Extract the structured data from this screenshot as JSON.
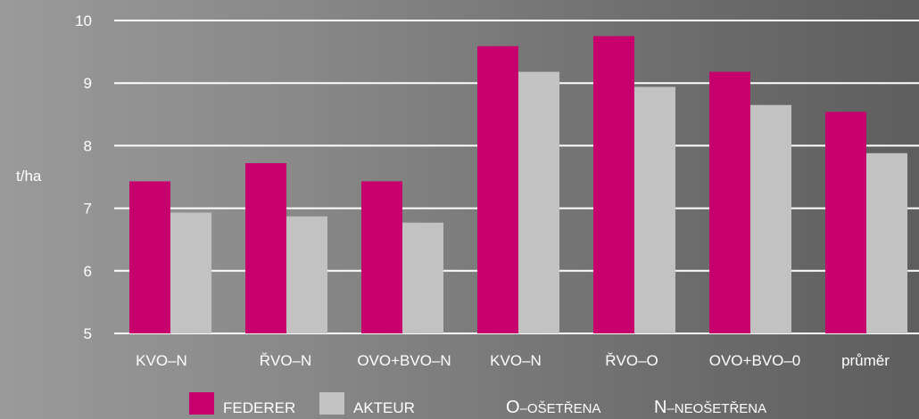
{
  "chart_data": {
    "type": "bar",
    "ylabel": "t/ha",
    "ylim": [
      5,
      10
    ],
    "yticks": [
      5,
      6,
      7,
      8,
      9,
      10
    ],
    "grid": true,
    "legend_position": "bottom",
    "categories": [
      "KVO–N",
      "ŘVO–N",
      "OVO+BVO–N",
      "KVO–N",
      "ŘVO–O",
      "OVO+BVO–0",
      "průměr"
    ],
    "series": [
      {
        "name": "FEDERER",
        "color": "#c8006e",
        "values": [
          7.43,
          7.72,
          7.43,
          9.59,
          9.75,
          9.18,
          8.54
        ]
      },
      {
        "name": "AKTEUR",
        "color": "#c2c2c2",
        "values": [
          6.93,
          6.87,
          6.77,
          9.18,
          8.94,
          8.65,
          7.88
        ]
      }
    ],
    "notes": [
      {
        "letter": "O",
        "text": "–OŠETŘENA"
      },
      {
        "letter": "N",
        "text": "–NEOŠETŘENA"
      }
    ]
  }
}
